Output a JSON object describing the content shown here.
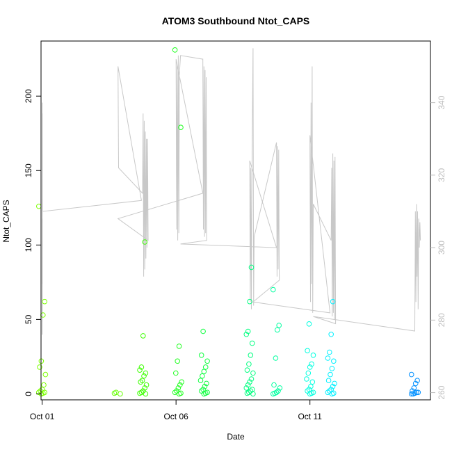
{
  "chart_data": {
    "type": "scatter",
    "title": "ATOM3 Southbound Ntot_CAPS",
    "xlabel": "Date",
    "ylabel": "Ntot_CAPS",
    "x_ticks": [
      "Oct 01",
      "Oct 06",
      "Oct 11"
    ],
    "xlim": [
      "2017-09-30T23:00",
      "2017-10-15T12:00"
    ],
    "ylim_left": [
      -4,
      237
    ],
    "y_ticks_left": [
      0,
      50,
      100,
      150,
      200
    ],
    "ylim_right": [
      258,
      357
    ],
    "y_ticks_right": [
      260,
      280,
      300,
      320,
      340
    ],
    "grid": false,
    "legend": "none",
    "colors": {
      "right_axis": "#bdbdbd",
      "altitude_line": "#c8c8c8",
      "frame": "#000000"
    },
    "series": [
      {
        "role": "points",
        "axis": "left",
        "marker": "open-circle",
        "color_gradient": [
          "#7cff00",
          "#00ff6a",
          "#00ffe0",
          "#0090ff"
        ],
        "clusters": [
          {
            "x": "2017-10-01T00:00",
            "color": "#7cff00",
            "values": [
              126,
              62,
              53,
              22,
              18,
              13,
              6,
              3,
              2,
              1,
              1,
              0.5,
              0
            ]
          },
          {
            "x": "2017-10-03T19:00",
            "color": "#66ff00",
            "values": [
              1,
              0.5,
              0
            ]
          },
          {
            "x": "2017-10-04T18:30",
            "color": "#3cff00",
            "values": [
              102,
              39,
              18,
              16,
              14,
              12,
              9,
              8,
              6,
              4,
              2,
              1,
              0.5,
              0
            ]
          },
          {
            "x": "2017-10-06T02:00",
            "color": "#20ff20",
            "values": [
              231,
              179,
              32,
              22,
              14,
              8,
              6,
              4,
              2,
              1,
              0.5,
              0
            ]
          },
          {
            "x": "2017-10-07T01:00",
            "color": "#10ff40",
            "values": [
              42,
              26,
              22,
              18,
              15,
              12,
              9,
              7,
              5,
              3,
              2,
              1,
              0.5,
              0
            ]
          },
          {
            "x": "2017-10-08T18:00",
            "color": "#00ff80",
            "values": [
              85,
              62,
              42,
              40,
              34,
              26,
              20,
              16,
              14,
              10,
              8,
              6,
              4,
              3,
              2,
              1,
              0.5,
              0
            ]
          },
          {
            "x": "2017-10-09T18:00",
            "color": "#00ffa0",
            "values": [
              70,
              46,
              43,
              24,
              6,
              4,
              2,
              1,
              0.5,
              0
            ]
          },
          {
            "x": "2017-10-11T00:00",
            "color": "#00ffe0",
            "values": [
              47,
              29,
              26,
              20,
              18,
              14,
              10,
              8,
              5,
              3,
              2,
              1,
              0.5,
              0
            ]
          },
          {
            "x": "2017-10-11T19:00",
            "color": "#00f0ff",
            "values": [
              62,
              40,
              28,
              24,
              22,
              17,
              13,
              9,
              7,
              5,
              3,
              2,
              1,
              0.5,
              0
            ]
          },
          {
            "x": "2017-10-14T22:00",
            "color": "#0090ff",
            "values": [
              13,
              9,
              7,
              4,
              2,
              1,
              1,
              0.5,
              0,
              0
            ]
          }
        ]
      },
      {
        "role": "line",
        "axis": "right",
        "color": "#c8c8c8",
        "points": [
          [
            "2017-10-01T00:00",
            290
          ],
          [
            "2017-10-01T00:05",
            308
          ],
          [
            "2017-10-01T00:10",
            276
          ],
          [
            "2017-10-01T00:15",
            340
          ],
          [
            "2017-10-01T00:20",
            282
          ],
          [
            "2017-10-01T00:25",
            337
          ],
          [
            "2017-10-01T00:30",
            310
          ],
          [
            "2017-10-04T17:00",
            313
          ],
          [
            "2017-10-03T20:00",
            350
          ],
          [
            "2017-10-03T20:30",
            322
          ],
          [
            "2017-10-04T18:00",
            315
          ],
          [
            "2017-10-04T18:30",
            337
          ],
          [
            "2017-10-04T19:00",
            292
          ],
          [
            "2017-10-04T19:30",
            335
          ],
          [
            "2017-10-04T20:00",
            294
          ],
          [
            "2017-10-04T20:30",
            332
          ],
          [
            "2017-10-04T21:00",
            297
          ],
          [
            "2017-10-04T21:30",
            330
          ],
          [
            "2017-10-04T22:00",
            300
          ],
          [
            "2017-10-04T22:30",
            330
          ],
          [
            "2017-10-04T23:00",
            302
          ],
          [
            "2017-10-03T20:00",
            308
          ],
          [
            "2017-10-07T00:00",
            315
          ],
          [
            "2017-10-06T00:00",
            352
          ],
          [
            "2017-10-06T00:30",
            305
          ],
          [
            "2017-10-06T01:00",
            350
          ],
          [
            "2017-10-06T01:30",
            302
          ],
          [
            "2017-10-06T02:00",
            353
          ],
          [
            "2017-10-06T02:30",
            304
          ],
          [
            "2017-10-06T03:00",
            348
          ],
          [
            "2017-10-06T04:00",
            353
          ],
          [
            "2017-10-07T00:00",
            352
          ],
          [
            "2017-10-07T00:30",
            305
          ],
          [
            "2017-10-07T01:00",
            350
          ],
          [
            "2017-10-07T01:30",
            303
          ],
          [
            "2017-10-07T02:00",
            349
          ],
          [
            "2017-10-07T02:30",
            304
          ],
          [
            "2017-10-07T03:00",
            347
          ],
          [
            "2017-10-07T03:30",
            302
          ],
          [
            "2017-10-06T04:00",
            301
          ],
          [
            "2017-10-09T18:00",
            300
          ],
          [
            "2017-10-08T18:00",
            324
          ],
          [
            "2017-10-08T18:30",
            285
          ],
          [
            "2017-10-08T19:00",
            322
          ],
          [
            "2017-10-08T19:30",
            283
          ],
          [
            "2017-10-08T20:00",
            320
          ],
          [
            "2017-10-08T21:00",
            355
          ],
          [
            "2017-10-08T21:30",
            284
          ],
          [
            "2017-10-08T22:00",
            303
          ],
          [
            "2017-10-09T18:00",
            329
          ],
          [
            "2017-10-09T18:30",
            292
          ],
          [
            "2017-10-09T19:00",
            328
          ],
          [
            "2017-10-09T19:30",
            294
          ],
          [
            "2017-10-09T20:00",
            327
          ],
          [
            "2017-10-09T20:30",
            291
          ],
          [
            "2017-10-08T21:00",
            285
          ],
          [
            "2017-10-11T18:00",
            282
          ],
          [
            "2017-10-11T00:00",
            331
          ],
          [
            "2017-10-11T00:30",
            285
          ],
          [
            "2017-10-11T01:00",
            340
          ],
          [
            "2017-10-11T01:30",
            290
          ],
          [
            "2017-10-11T02:00",
            350
          ],
          [
            "2017-10-11T02:30",
            282
          ],
          [
            "2017-10-11T03:00",
            312
          ],
          [
            "2017-10-11T19:00",
            302
          ],
          [
            "2017-10-11T19:30",
            322
          ],
          [
            "2017-10-11T20:00",
            281
          ],
          [
            "2017-10-11T20:30",
            326
          ],
          [
            "2017-10-11T21:00",
            282
          ],
          [
            "2017-10-11T21:30",
            324
          ],
          [
            "2017-10-11T22:00",
            280
          ],
          [
            "2017-10-11T22:30",
            325
          ],
          [
            "2017-10-11T23:00",
            279
          ],
          [
            "2017-10-11T03:00",
            281
          ],
          [
            "2017-10-14T22:00",
            277
          ],
          [
            "2017-10-14T22:30",
            310
          ],
          [
            "2017-10-14T23:00",
            285
          ],
          [
            "2017-10-14T23:30",
            312
          ],
          [
            "2017-10-15T00:00",
            292
          ],
          [
            "2017-10-15T00:30",
            310
          ],
          [
            "2017-10-15T01:00",
            283
          ],
          [
            "2017-10-15T01:30",
            308
          ],
          [
            "2017-10-15T02:00",
            300
          ],
          [
            "2017-10-15T02:30",
            307
          ],
          [
            "2017-10-15T03:00",
            302
          ]
        ]
      }
    ]
  }
}
